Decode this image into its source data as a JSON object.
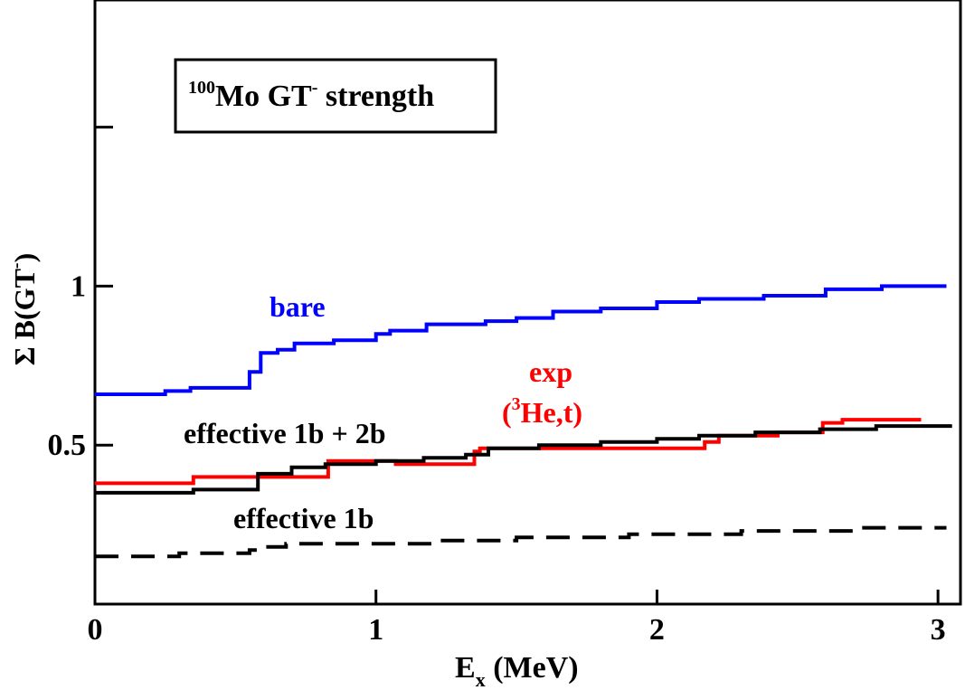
{
  "chart_data": {
    "type": "line",
    "title": "",
    "xlabel": {
      "base": "E",
      "sub": "x",
      "rest": " (MeV)"
    },
    "ylabel": {
      "prefix": "Σ B(GT",
      "sup": "-",
      "suffix": ")"
    },
    "xlim": [
      0,
      3.08
    ],
    "ylim": [
      0,
      1.9
    ],
    "x_ticks": [
      {
        "value": 0,
        "label": "0"
      },
      {
        "value": 1,
        "label": "1"
      },
      {
        "value": 2,
        "label": "2"
      },
      {
        "value": 3,
        "label": "3"
      }
    ],
    "y_ticks": [
      {
        "value": 0.5,
        "label": "0.5"
      },
      {
        "value": 1.0,
        "label": "1"
      },
      {
        "value": 1.5,
        "label": ""
      }
    ],
    "legend_box": {
      "sup": "100",
      "nucleus": "Mo GT",
      "sup2": "-",
      "rest": " strength"
    },
    "series": [
      {
        "name": "bare",
        "label": "bare",
        "color": "#0000ff",
        "style": "solid",
        "x": [
          0,
          0.25,
          0.25,
          0.34,
          0.34,
          0.55,
          0.55,
          0.59,
          0.59,
          0.65,
          0.65,
          0.71,
          0.71,
          0.85,
          0.85,
          1.0,
          1.0,
          1.05,
          1.05,
          1.18,
          1.18,
          1.39,
          1.39,
          1.5,
          1.5,
          1.63,
          1.63,
          1.8,
          1.8,
          2.0,
          2.0,
          2.15,
          2.15,
          2.38,
          2.38,
          2.6,
          2.6,
          2.8,
          2.8,
          3.03
        ],
        "y": [
          0.66,
          0.66,
          0.67,
          0.67,
          0.68,
          0.68,
          0.73,
          0.73,
          0.79,
          0.79,
          0.8,
          0.8,
          0.82,
          0.82,
          0.83,
          0.83,
          0.85,
          0.85,
          0.86,
          0.86,
          0.88,
          0.88,
          0.89,
          0.89,
          0.9,
          0.9,
          0.92,
          0.92,
          0.93,
          0.93,
          0.95,
          0.95,
          0.96,
          0.96,
          0.97,
          0.97,
          0.99,
          0.99,
          1.0,
          1.0
        ]
      },
      {
        "name": "exp (3He,t)",
        "label_top": "exp",
        "label_sup": "3",
        "label_bottom": "He,t)",
        "label_open": "(",
        "color": "#ff0000",
        "style": "solid",
        "x": [
          0,
          0.35,
          0.35,
          0.83,
          0.83,
          1.07,
          1.07,
          1.35,
          1.35,
          1.37,
          1.37,
          1.56,
          1.56,
          2.17,
          2.17,
          2.22,
          2.22,
          2.43,
          2.43,
          2.59,
          2.59,
          2.66,
          2.66,
          2.94
        ],
        "y": [
          0.38,
          0.38,
          0.4,
          0.4,
          0.45,
          0.45,
          0.44,
          0.44,
          0.48,
          0.48,
          0.49,
          0.49,
          0.49,
          0.49,
          0.51,
          0.51,
          0.53,
          0.53,
          0.54,
          0.54,
          0.57,
          0.57,
          0.58,
          0.58
        ]
      },
      {
        "name": "effective 1b + 2b",
        "label": "effective 1b + 2b",
        "color": "#000000",
        "style": "solid",
        "x": [
          0,
          0.35,
          0.35,
          0.58,
          0.58,
          0.7,
          0.7,
          0.82,
          0.82,
          1.0,
          1.0,
          1.17,
          1.17,
          1.32,
          1.32,
          1.4,
          1.4,
          1.58,
          1.58,
          1.8,
          1.8,
          2.0,
          2.0,
          2.15,
          2.15,
          2.35,
          2.35,
          2.58,
          2.58,
          2.78,
          2.78,
          3.05
        ],
        "y": [
          0.35,
          0.35,
          0.36,
          0.36,
          0.41,
          0.41,
          0.43,
          0.43,
          0.44,
          0.44,
          0.45,
          0.45,
          0.46,
          0.46,
          0.47,
          0.47,
          0.49,
          0.49,
          0.5,
          0.5,
          0.51,
          0.51,
          0.52,
          0.52,
          0.53,
          0.53,
          0.54,
          0.54,
          0.55,
          0.55,
          0.56,
          0.56
        ]
      },
      {
        "name": "effective 1b",
        "label": "effective 1b",
        "color": "#000000",
        "style": "dashed",
        "x": [
          0,
          0.3,
          0.3,
          0.55,
          0.55,
          0.6,
          0.6,
          0.68,
          0.68,
          1.2,
          1.2,
          1.5,
          1.5,
          1.9,
          1.9,
          2.3,
          2.3,
          2.7,
          2.7,
          3.03
        ],
        "y": [
          0.15,
          0.15,
          0.16,
          0.16,
          0.17,
          0.17,
          0.18,
          0.18,
          0.19,
          0.19,
          0.2,
          0.2,
          0.21,
          0.21,
          0.22,
          0.22,
          0.23,
          0.23,
          0.24,
          0.24
        ]
      }
    ]
  }
}
